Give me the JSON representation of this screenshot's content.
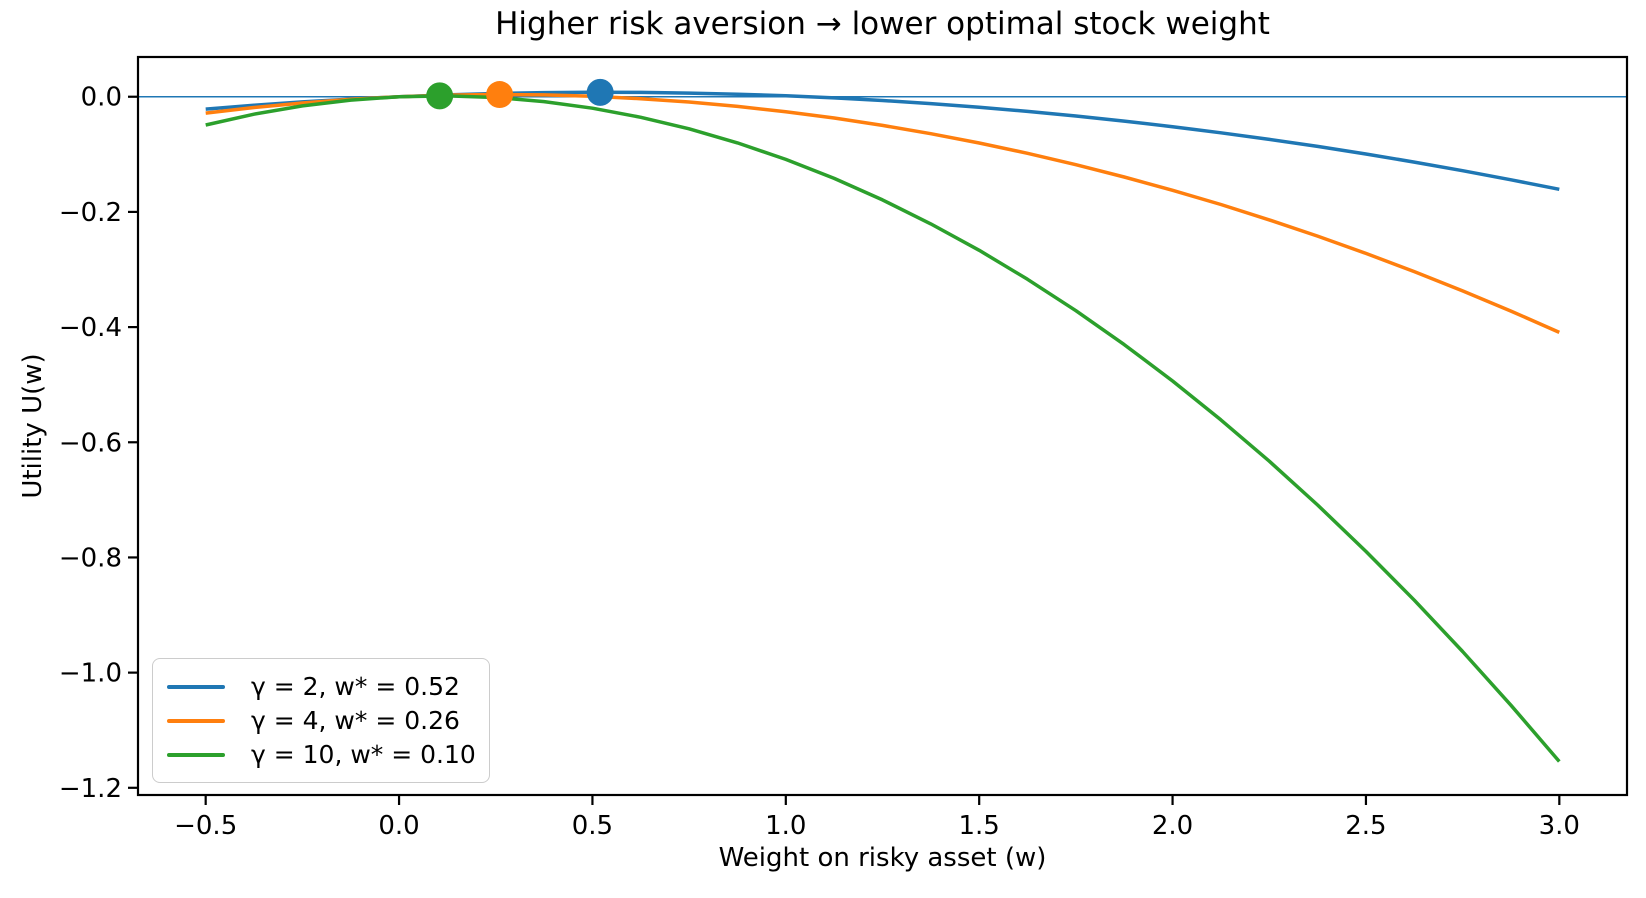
{
  "chart_data": {
    "type": "line",
    "title": "Higher risk aversion → lower optimal stock weight",
    "xlabel": "Weight on risky asset (w)",
    "ylabel": "Utility U(w)",
    "xlim": [
      -0.675,
      3.175
    ],
    "ylim": [
      -1.2125,
      0.069
    ],
    "grid": false,
    "legend_position": "lower left",
    "axis_color": "#000000",
    "background_color": "#ffffff",
    "zero_line": {
      "y": 0.0,
      "color": "#1f77b4",
      "width": 1.5
    },
    "x_ticks": {
      "values": [
        -0.5,
        0.0,
        0.5,
        1.0,
        1.5,
        2.0,
        2.5,
        3.0
      ],
      "labels": [
        "−0.5",
        "0.0",
        "0.5",
        "1.0",
        "1.5",
        "2.0",
        "2.5",
        "3.0"
      ]
    },
    "y_ticks": {
      "values": [
        0.0,
        -0.2,
        -0.4,
        -0.6,
        -0.8,
        -1.0,
        -1.2
      ],
      "labels": [
        "0.0",
        "−0.2",
        "−0.4",
        "−0.6",
        "−0.8",
        "−1.0",
        "−1.2"
      ]
    },
    "series": [
      {
        "label": "γ = 2, w* = 0.52",
        "gamma": 2,
        "w_star": 0.52,
        "color": "#1f77b4",
        "optimum": {
          "w": 0.52,
          "u": 0.0076
        },
        "points": [
          [
            -0.5,
            -0.0215
          ],
          [
            -0.375,
            -0.0148
          ],
          [
            -0.25,
            -0.009
          ],
          [
            -0.125,
            -0.0041
          ],
          [
            0,
            0
          ],
          [
            0.125,
            0.0032
          ],
          [
            0.25,
            0.0056
          ],
          [
            0.375,
            0.0071
          ],
          [
            0.5,
            0.0077
          ],
          [
            0.625,
            0.0075
          ],
          [
            0.75,
            0.0064
          ],
          [
            0.875,
            0.0044
          ],
          [
            1,
            0.0016
          ],
          [
            1.125,
            -0.0021
          ],
          [
            1.25,
            -0.0066
          ],
          [
            1.375,
            -0.012
          ],
          [
            1.5,
            -0.0183
          ],
          [
            1.625,
            -0.0254
          ],
          [
            1.75,
            -0.0334
          ],
          [
            1.875,
            -0.0423
          ],
          [
            2,
            -0.052
          ],
          [
            2.125,
            -0.0626
          ],
          [
            2.25,
            -0.074
          ],
          [
            2.375,
            -0.0863
          ],
          [
            2.5,
            -0.0995
          ],
          [
            2.625,
            -0.1135
          ],
          [
            2.75,
            -0.1284
          ],
          [
            2.875,
            -0.1442
          ],
          [
            3,
            -0.1608
          ]
        ]
      },
      {
        "label": "γ = 4, w* = 0.26",
        "gamma": 4,
        "w_star": 0.26,
        "color": "#ff7f0e",
        "optimum": {
          "w": 0.26,
          "u": 0.0038
        },
        "points": [
          [
            -0.5,
            -0.0284
          ],
          [
            -0.375,
            -0.0187
          ],
          [
            -0.25,
            -0.0108
          ],
          [
            -0.125,
            -0.0045
          ],
          [
            0,
            0
          ],
          [
            0.125,
            0.0028
          ],
          [
            0.25,
            0.0039
          ],
          [
            0.375,
            0.0032
          ],
          [
            0.5,
            0.0008
          ],
          [
            0.625,
            -0.0034
          ],
          [
            0.75,
            -0.0092
          ],
          [
            0.875,
            -0.0167
          ],
          [
            1,
            -0.026
          ],
          [
            1.125,
            -0.037
          ],
          [
            1.25,
            -0.0498
          ],
          [
            1.375,
            -0.0642
          ],
          [
            1.5,
            -0.0804
          ],
          [
            1.625,
            -0.0983
          ],
          [
            1.75,
            -0.118
          ],
          [
            1.875,
            -0.1393
          ],
          [
            2,
            -0.1624
          ],
          [
            2.125,
            -0.1872
          ],
          [
            2.25,
            -0.2138
          ],
          [
            2.375,
            -0.242
          ],
          [
            2.5,
            -0.272
          ],
          [
            2.625,
            -0.3037
          ],
          [
            2.75,
            -0.3372
          ],
          [
            2.875,
            -0.3723
          ],
          [
            3,
            -0.4092
          ]
        ]
      },
      {
        "label": "γ = 10, w* = 0.10",
        "gamma": 10,
        "w_star": 0.1,
        "color": "#2ca02c",
        "optimum": {
          "w": 0.105,
          "u": 0.0015
        },
        "points": [
          [
            -0.5,
            -0.0491
          ],
          [
            -0.375,
            -0.0304
          ],
          [
            -0.25,
            -0.0159
          ],
          [
            -0.125,
            -0.0058
          ],
          [
            0,
            0
          ],
          [
            0.125,
            0.0015
          ],
          [
            0.25,
            -0.0013
          ],
          [
            0.375,
            -0.0085
          ],
          [
            0.5,
            -0.0199
          ],
          [
            0.625,
            -0.0357
          ],
          [
            0.75,
            -0.0557
          ],
          [
            0.875,
            -0.0801
          ],
          [
            1,
            -0.1088
          ],
          [
            1.125,
            -0.1418
          ],
          [
            1.25,
            -0.1791
          ],
          [
            1.375,
            -0.2208
          ],
          [
            1.5,
            -0.2667
          ],
          [
            1.625,
            -0.317
          ],
          [
            1.75,
            -0.3715
          ],
          [
            1.875,
            -0.4304
          ],
          [
            2,
            -0.4936
          ],
          [
            2.125,
            -0.5611
          ],
          [
            2.25,
            -0.6329
          ],
          [
            2.375,
            -0.709
          ],
          [
            2.5,
            -0.7895
          ],
          [
            2.625,
            -0.8743
          ],
          [
            2.75,
            -0.9633
          ],
          [
            2.875,
            -1.0567
          ],
          [
            3,
            -1.1544
          ]
        ]
      }
    ]
  }
}
